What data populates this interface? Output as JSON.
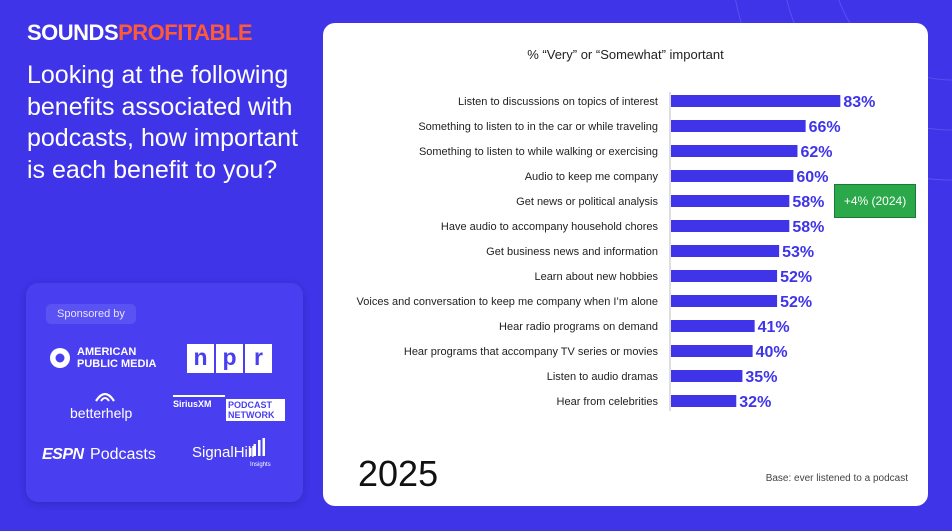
{
  "brand": {
    "part1": "SOUNDS",
    "part2": "PROFITABLE"
  },
  "question": "Looking at the following benefits associated with podcasts, how important is each benefit to you?",
  "sponsors": {
    "label": "Sponsored by",
    "logos": {
      "apm_line1": "AMERICAN",
      "apm_line2": "PUBLIC MEDIA",
      "npr_n": "n",
      "npr_p": "p",
      "npr_r": "r",
      "betterhelp": "betterhelp",
      "siriusxm": "SiriusXM",
      "podcast_network_1": "PODCAST",
      "podcast_network_2": "NETWORK",
      "espn_1": "ESPN",
      "espn_2": "Podcasts",
      "signalhill_1": "SignalHill",
      "signalhill_2": "Insights"
    }
  },
  "year": "2025",
  "base_note": "Base: ever listened to a podcast",
  "colors": {
    "background": "#3f34e8",
    "bar": "#3f34e8",
    "accent": "#ff5a36",
    "annotation": "#2aa84a"
  },
  "chart_data": {
    "type": "bar",
    "orientation": "horizontal",
    "title": "% “Very” or “Somewhat” important",
    "categories": [
      "Listen to discussions on topics of interest",
      "Something to listen to in the car or while traveling",
      "Something to listen to while walking or exercising",
      "Audio to keep me company",
      "Get news or political analysis",
      "Have audio to accompany household chores",
      "Get business news and information",
      "Learn about new hobbies",
      "Voices and conversation to keep me company when I’m alone",
      "Hear radio programs on demand",
      "Hear programs that accompany TV series or movies",
      "Listen to audio dramas",
      "Hear from celebrities"
    ],
    "values": [
      83,
      66,
      62,
      60,
      58,
      58,
      53,
      52,
      52,
      41,
      40,
      35,
      32
    ],
    "value_labels": [
      "83%",
      "66%",
      "62%",
      "60%",
      "58%",
      "58%",
      "53%",
      "52%",
      "52%",
      "41%",
      "40%",
      "35%",
      "32%"
    ],
    "xlim": [
      0,
      100
    ],
    "annotation": {
      "category_index": 4,
      "text": "+4% (2024)"
    }
  }
}
